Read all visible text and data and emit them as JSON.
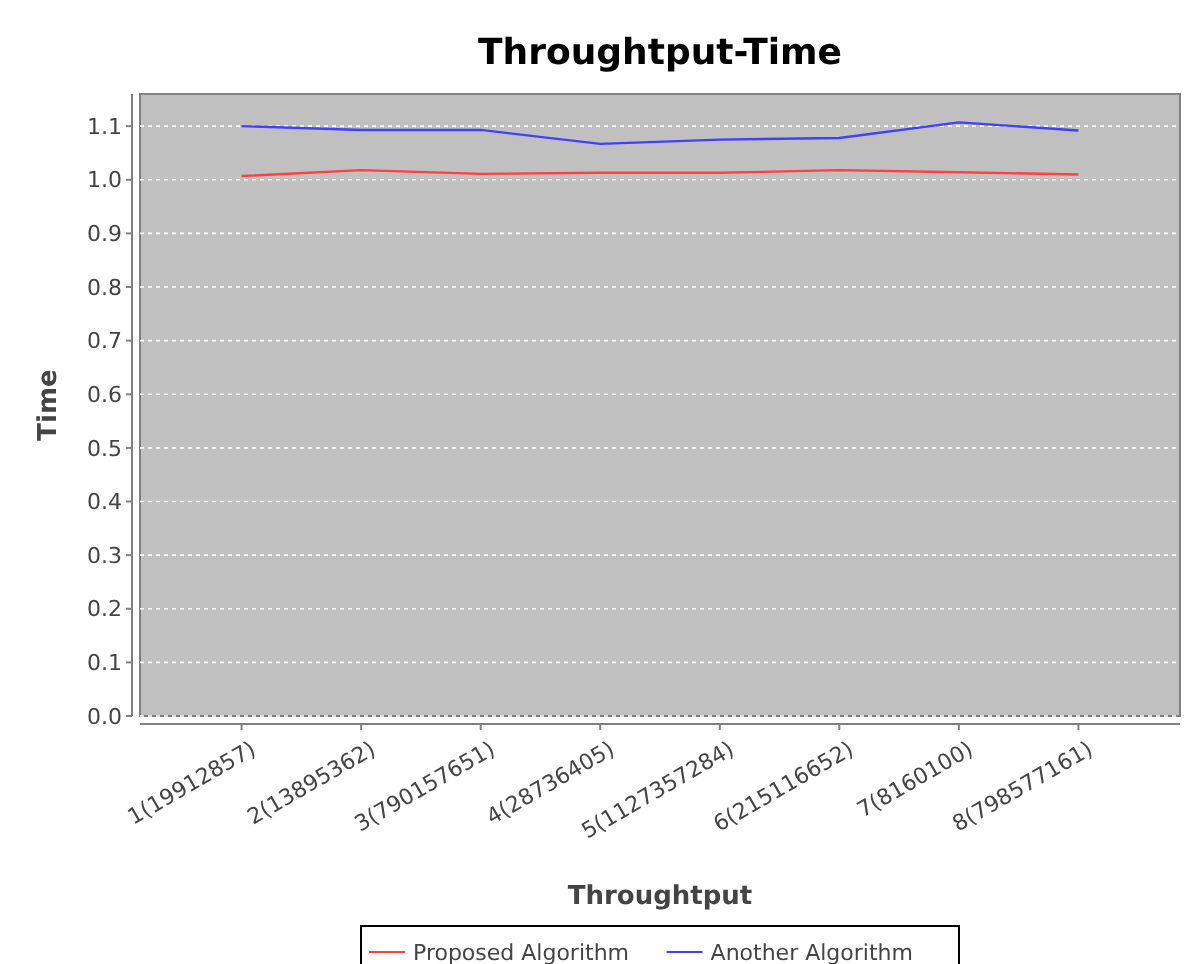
{
  "chart_data": {
    "type": "line",
    "title": "Throughtput-Time",
    "xlabel": "Throughtput",
    "ylabel": "Time",
    "categories": [
      "1(19912857)",
      "2(13895362)",
      "3(790157651)",
      "4(28736405)",
      "5(1127357284)",
      "6(215116652)",
      "7(8160100)",
      "8(798577161)"
    ],
    "series": [
      {
        "name": "Proposed Algorithm",
        "color": "#ff4040",
        "values": [
          1.007,
          1.018,
          1.011,
          1.013,
          1.013,
          1.018,
          1.014,
          1.01
        ]
      },
      {
        "name": "Another Algorithm",
        "color": "#4040ff",
        "values": [
          1.1,
          1.093,
          1.093,
          1.067,
          1.075,
          1.078,
          1.107,
          1.092
        ]
      }
    ],
    "ylim": [
      0,
      1.16
    ],
    "yticks": [
      {
        "value": 0,
        "label": "0.0"
      },
      0.1,
      0.2,
      0.3,
      0.4,
      0.5,
      0.6,
      0.7,
      0.8,
      0.9,
      {
        "value": 1,
        "label": "1.0"
      },
      1.1
    ],
    "grid": "y",
    "legend": "bottom"
  }
}
